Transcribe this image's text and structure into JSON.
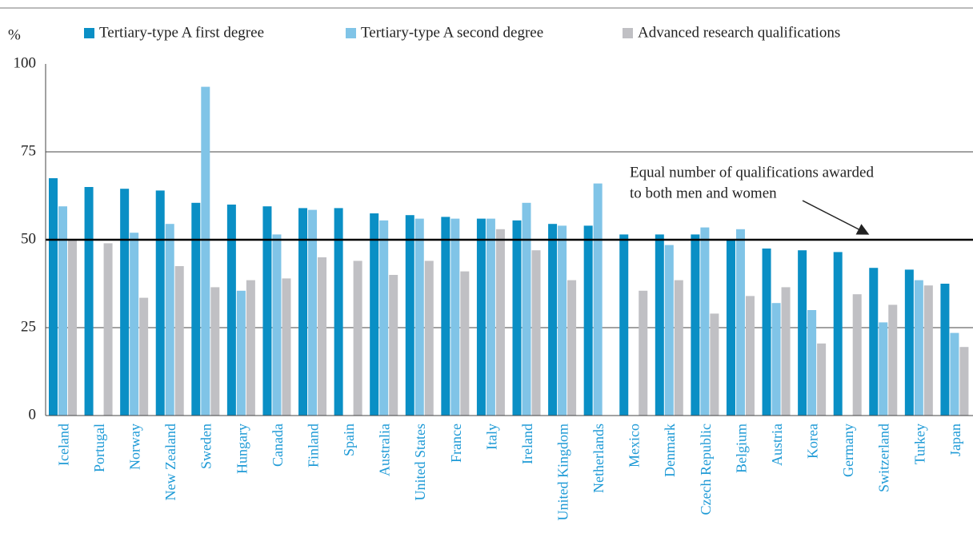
{
  "chart_data": {
    "type": "bar",
    "y_axis_label": "%",
    "categories": [
      "Iceland",
      "Portugal",
      "Norway",
      "New Zealand",
      "Sweden",
      "Hungary",
      "Canada",
      "Finland",
      "Spain",
      "Australia",
      "United States",
      "France",
      "Italy",
      "Ireland",
      "United Kingdom",
      "Netherlands",
      "Mexico",
      "Denmark",
      "Czech Republic",
      "Belgium",
      "Austria",
      "Korea",
      "Germany",
      "Switzerland",
      "Turkey",
      "Japan"
    ],
    "series": [
      {
        "name": "Tertiary-type A first degree",
        "color": "#0a8fc5",
        "values": [
          67.5,
          65,
          64.5,
          64,
          60.5,
          60,
          59.5,
          59,
          59,
          57.5,
          57,
          56.5,
          56,
          55.5,
          54.5,
          54,
          51.5,
          51.5,
          51.5,
          50,
          47.5,
          47,
          46.5,
          42,
          41.5,
          37.5
        ]
      },
      {
        "name": "Tertiary-type A second degree",
        "color": "#80c4e7",
        "values": [
          59.5,
          null,
          52,
          54.5,
          93.5,
          35.5,
          51.5,
          58.5,
          null,
          55.5,
          56,
          56,
          56,
          60.5,
          54,
          66,
          null,
          48.5,
          53.5,
          53,
          32,
          30,
          null,
          26.5,
          38.5,
          23.5
        ]
      },
      {
        "name": "Advanced research qualifications",
        "color": "#c0c0c4",
        "values": [
          50,
          49,
          33.5,
          42.5,
          36.5,
          38.5,
          39,
          45,
          44,
          40,
          44,
          41,
          53,
          47,
          38.5,
          null,
          35.5,
          38.5,
          29,
          34,
          36.5,
          20.5,
          34.5,
          31.5,
          37,
          19.5
        ]
      }
    ],
    "ylim": [
      0,
      100
    ],
    "yticks": [
      0,
      25,
      50,
      75,
      100
    ],
    "grid": true,
    "reference_line": 50,
    "annotation": [
      "Equal number of qualifications awarded",
      "to both men and women"
    ]
  }
}
